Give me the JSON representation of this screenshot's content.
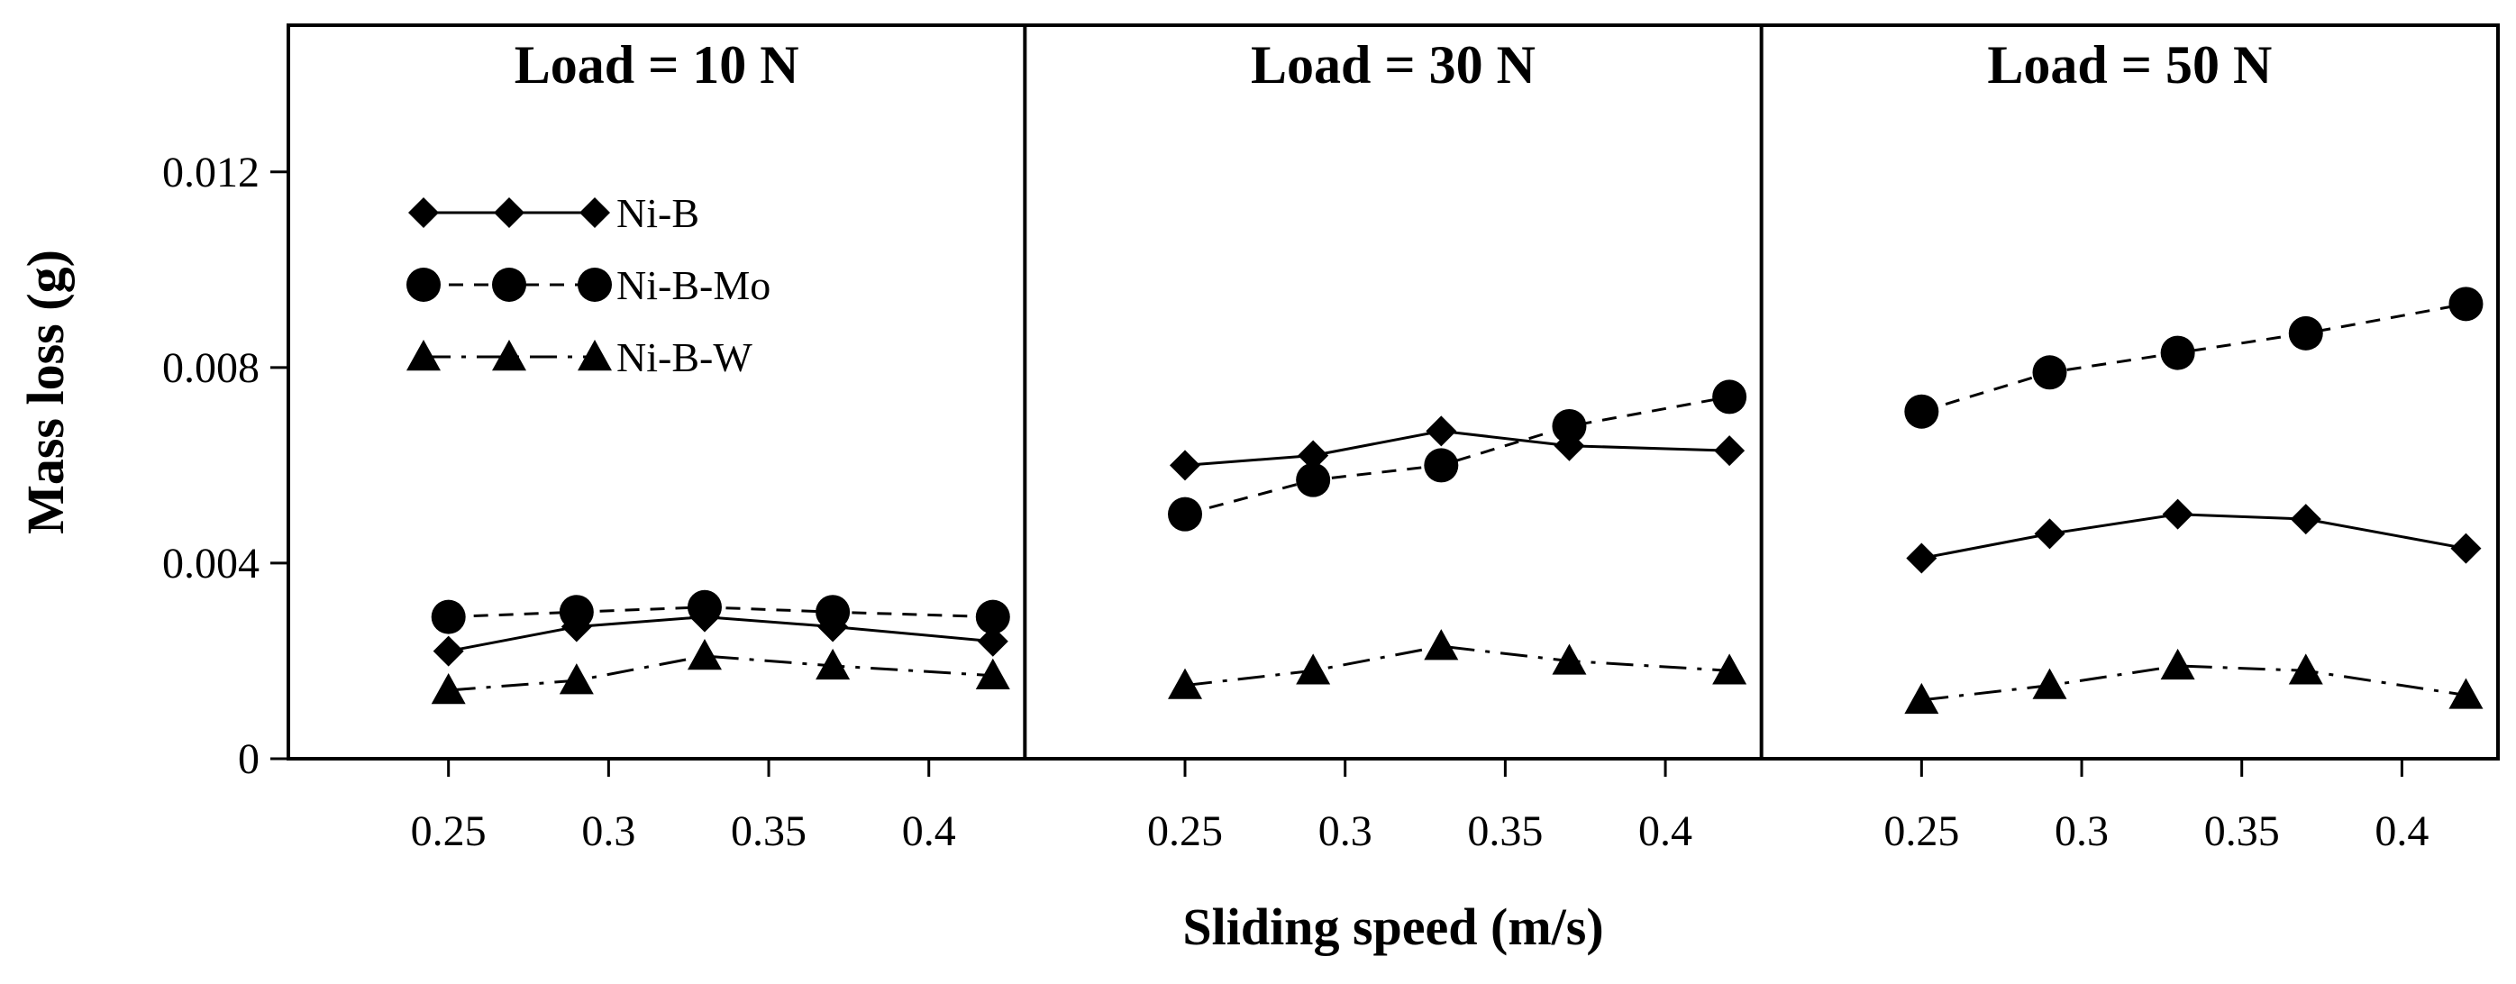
{
  "chart_data": {
    "type": "line",
    "xlabel": "Sliding speed (m/s)",
    "ylabel": "Mass loss (g)",
    "ylim": [
      0,
      0.015
    ],
    "yticks": [
      0,
      0.004,
      0.008,
      0.012
    ],
    "ytick_labels": [
      "0",
      "0.004",
      "0.008",
      "0.012"
    ],
    "xlim": [
      0.2,
      0.43
    ],
    "xticks": [
      0.25,
      0.3,
      0.35,
      0.4
    ],
    "xtick_labels": [
      "0.25",
      "0.3",
      "0.35",
      "0.4"
    ],
    "x": [
      0.25,
      0.29,
      0.33,
      0.37,
      0.42
    ],
    "legend": {
      "location": "upper-left of first panel",
      "entries": [
        "Ni-B",
        "Ni-B-Mo",
        "Ni-B-W"
      ]
    },
    "panels": [
      {
        "title": "Load = 10 N",
        "series": [
          {
            "name": "Ni-B",
            "marker": "diamond",
            "line": "solid",
            "values": [
              0.0022,
              0.0027,
              0.0029,
              0.0027,
              0.0024
            ]
          },
          {
            "name": "Ni-B-Mo",
            "marker": "circle",
            "line": "dashed",
            "values": [
              0.0029,
              0.003,
              0.0031,
              0.003,
              0.0029
            ]
          },
          {
            "name": "Ni-B-W",
            "marker": "triangle",
            "line": "dashdot",
            "values": [
              0.0014,
              0.0016,
              0.0021,
              0.0019,
              0.0017
            ]
          }
        ]
      },
      {
        "title": "Load = 30 N",
        "series": [
          {
            "name": "Ni-B",
            "marker": "diamond",
            "line": "solid",
            "values": [
              0.006,
              0.0062,
              0.0067,
              0.0064,
              0.0063
            ]
          },
          {
            "name": "Ni-B-Mo",
            "marker": "circle",
            "line": "dashed",
            "values": [
              0.005,
              0.0057,
              0.006,
              0.0068,
              0.0074
            ]
          },
          {
            "name": "Ni-B-W",
            "marker": "triangle",
            "line": "dashdot",
            "values": [
              0.0015,
              0.0018,
              0.0023,
              0.002,
              0.0018
            ]
          }
        ]
      },
      {
        "title": "Load = 50 N",
        "series": [
          {
            "name": "Ni-B",
            "marker": "diamond",
            "line": "solid",
            "values": [
              0.0041,
              0.0046,
              0.005,
              0.0049,
              0.0043
            ]
          },
          {
            "name": "Ni-B-Mo",
            "marker": "circle",
            "line": "dashed",
            "values": [
              0.0071,
              0.0079,
              0.0083,
              0.0087,
              0.0093
            ]
          },
          {
            "name": "Ni-B-W",
            "marker": "triangle",
            "line": "dashdot",
            "values": [
              0.0012,
              0.0015,
              0.0019,
              0.0018,
              0.0013
            ]
          }
        ]
      }
    ]
  }
}
